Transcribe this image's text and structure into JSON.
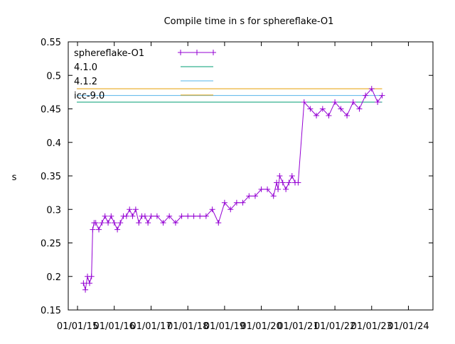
{
  "chart_data": {
    "type": "line",
    "title": "Compile time in s for sphereflake-O1",
    "xlabel": "",
    "ylabel": "s",
    "ylim": [
      0.15,
      0.55
    ],
    "yticks": [
      0.15,
      0.2,
      0.25,
      0.3,
      0.35,
      0.4,
      0.45,
      0.5,
      0.55
    ],
    "xticks": [
      "01/01/15",
      "01/01/16",
      "01/01/17",
      "01/01/18",
      "01/01/19",
      "01/01/20",
      "01/01/21",
      "01/01/22",
      "01/01/23",
      "01/01/24"
    ],
    "xlim": [
      "2014-10-01",
      "2024-09-01"
    ],
    "legend_position": "top-left",
    "grid": false,
    "series": [
      {
        "name": "sphereflake-O1",
        "color": "#9400d3",
        "marker": "plus",
        "x": [
          "2015-03-01",
          "2015-03-20",
          "2015-04-10",
          "2015-05-01",
          "2015-05-20",
          "2015-06-01",
          "2015-06-15",
          "2015-07-01",
          "2015-08-01",
          "2015-09-01",
          "2015-10-01",
          "2015-11-01",
          "2015-12-01",
          "2016-01-01",
          "2016-02-01",
          "2016-03-01",
          "2016-04-01",
          "2016-05-01",
          "2016-06-01",
          "2016-07-01",
          "2016-08-01",
          "2016-09-01",
          "2016-10-01",
          "2016-11-01",
          "2016-12-01",
          "2017-01-01",
          "2017-03-01",
          "2017-05-01",
          "2017-07-01",
          "2017-09-01",
          "2017-11-01",
          "2018-01-01",
          "2018-03-01",
          "2018-05-01",
          "2018-07-01",
          "2018-09-01",
          "2018-11-01",
          "2019-01-01",
          "2019-03-01",
          "2019-05-01",
          "2019-07-01",
          "2019-09-01",
          "2019-11-01",
          "2020-01-01",
          "2020-03-01",
          "2020-05-01",
          "2020-06-01",
          "2020-06-15",
          "2020-07-01",
          "2020-08-01",
          "2020-09-01",
          "2020-10-01",
          "2020-11-01",
          "2020-12-01",
          "2021-01-01",
          "2021-03-01",
          "2021-05-01",
          "2021-07-01",
          "2021-09-01",
          "2021-11-01",
          "2022-01-01",
          "2022-03-01",
          "2022-05-01",
          "2022-07-01",
          "2022-09-01",
          "2022-11-01",
          "2023-01-01",
          "2023-03-01",
          "2023-04-15"
        ],
        "y": [
          0.19,
          0.18,
          0.2,
          0.19,
          0.2,
          0.27,
          0.28,
          0.28,
          0.27,
          0.28,
          0.29,
          0.28,
          0.29,
          0.28,
          0.27,
          0.28,
          0.29,
          0.29,
          0.3,
          0.29,
          0.3,
          0.28,
          0.29,
          0.29,
          0.28,
          0.29,
          0.29,
          0.28,
          0.29,
          0.28,
          0.29,
          0.29,
          0.29,
          0.29,
          0.29,
          0.3,
          0.28,
          0.31,
          0.3,
          0.31,
          0.31,
          0.32,
          0.32,
          0.33,
          0.33,
          0.32,
          0.34,
          0.33,
          0.35,
          0.34,
          0.33,
          0.34,
          0.35,
          0.34,
          0.34,
          0.46,
          0.45,
          0.44,
          0.45,
          0.44,
          0.46,
          0.45,
          0.44,
          0.46,
          0.45,
          0.47,
          0.48,
          0.46,
          0.47
        ]
      },
      {
        "name": "4.1.0",
        "color": "#009e73",
        "constant": 0.46
      },
      {
        "name": "4.1.2",
        "color": "#56b4e9",
        "constant": 0.47
      },
      {
        "name": "icc-9.0",
        "color": "#e69f00",
        "constant": 0.48
      }
    ]
  }
}
